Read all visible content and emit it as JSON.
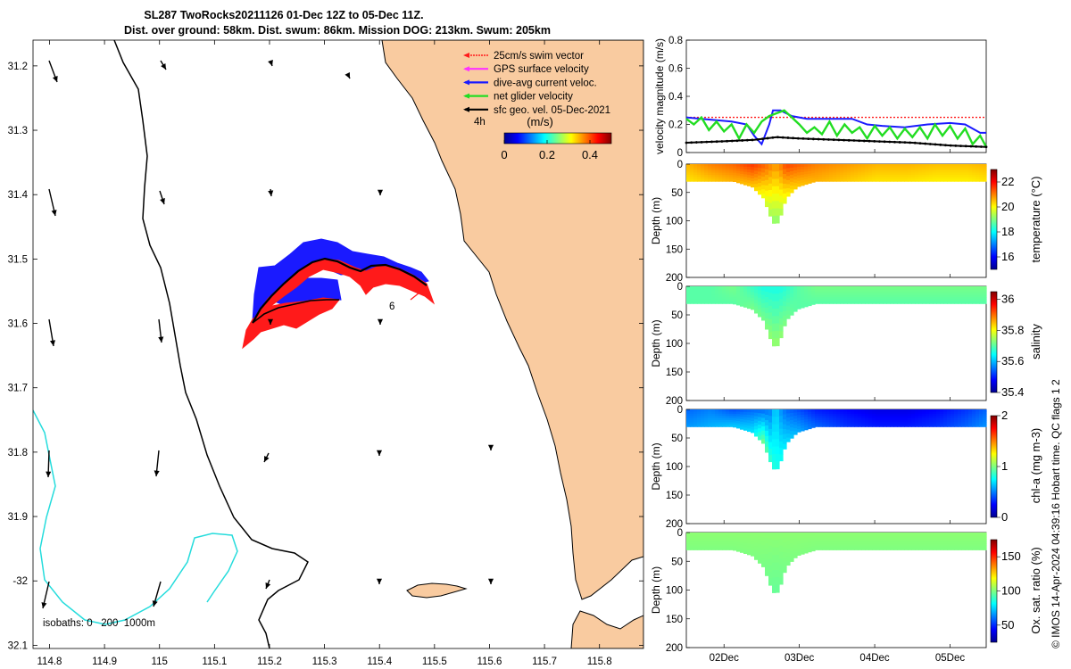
{
  "title": {
    "line1": "SL287 TwoRocks20211126 01-Dec 12Z to 05-Dec 11Z.",
    "line2": "Dist. over ground: 58km. Dist. swum: 86km. Mission DOG: 213km. Swum: 205km"
  },
  "colors": {
    "ocean": "#ffffff",
    "land": "#f9cba0",
    "coast": "#000000",
    "isobath_200": "#000000",
    "isobath_1000": "#25dcdc",
    "swim": "#ff1a1a",
    "gps": "#ff33ff",
    "dive_avg": "#1a1aff",
    "net": "#22dd22",
    "sfc_geo": "#000000"
  },
  "map": {
    "lon_ticks": [
      "114.8",
      "114.9",
      "115",
      "115.1",
      "115.2",
      "115.3",
      "115.4",
      "115.5",
      "115.6",
      "115.7",
      "115.8"
    ],
    "lat_ticks": [
      "31.2",
      "31.3",
      "31.4",
      "31.5",
      "31.6",
      "31.7",
      "31.8",
      "31.9",
      "-32",
      "32.1"
    ],
    "lon_range": [
      114.77,
      115.88
    ],
    "lat_range": [
      -32.105,
      -31.16
    ],
    "legend": [
      {
        "label": "25cm/s swim vector",
        "color": "#ff1a1a"
      },
      {
        "label": "GPS surface velocity",
        "color": "#ff33ff"
      },
      {
        "label": "dive-avg current veloc.",
        "color": "#1a1aff"
      },
      {
        "label": "net glider velocity",
        "color": "#22dd22"
      },
      {
        "label": "sfc geo. vel. 05-Dec-2021",
        "color": "#000000"
      }
    ],
    "time_label": "4h",
    "colorbar": {
      "label": "(m/s)",
      "ticks": [
        "0",
        "0.2",
        "0.4"
      ],
      "range": [
        0,
        0.5
      ]
    },
    "day_marker": "6",
    "isobath_label": "isobaths: 0   200  1000m"
  },
  "chart_data": [
    {
      "type": "line",
      "ylabel": "velocity magnitude (m/s)",
      "ylim": [
        0,
        0.8
      ],
      "yticks": [
        "0",
        "0.2",
        "0.4",
        "0.6",
        "0.8"
      ],
      "xlim_days": [
        1.5,
        5.48
      ],
      "series": [
        {
          "name": "",
          "color": "#ff1a1a",
          "style": "dotted",
          "x": [
            1.5,
            5.48
          ],
          "y": [
            0.25,
            0.25
          ]
        },
        {
          "name": "",
          "color": "#1a1aff",
          "x": [
            1.5,
            1.7,
            1.9,
            2.1,
            2.3,
            2.4,
            2.5,
            2.6,
            2.65,
            2.75,
            2.9,
            3.1,
            3.4,
            3.7,
            3.9,
            4.1,
            4.4,
            4.7,
            5.0,
            5.2,
            5.4,
            5.48
          ],
          "y": [
            0.25,
            0.24,
            0.23,
            0.22,
            0.2,
            0.12,
            0.06,
            0.2,
            0.3,
            0.3,
            0.26,
            0.24,
            0.24,
            0.24,
            0.2,
            0.19,
            0.18,
            0.2,
            0.21,
            0.2,
            0.14,
            0.14
          ]
        },
        {
          "name": "",
          "color": "#22dd22",
          "x": [
            1.5,
            1.6,
            1.7,
            1.8,
            1.9,
            2.0,
            2.1,
            2.2,
            2.3,
            2.4,
            2.5,
            2.6,
            2.7,
            2.8,
            2.9,
            3.0,
            3.1,
            3.2,
            3.3,
            3.4,
            3.5,
            3.6,
            3.7,
            3.8,
            3.9,
            4.0,
            4.1,
            4.2,
            4.3,
            4.4,
            4.5,
            4.6,
            4.7,
            4.8,
            4.9,
            5.0,
            5.1,
            5.2,
            5.3,
            5.4,
            5.48
          ],
          "y": [
            0.24,
            0.2,
            0.25,
            0.16,
            0.22,
            0.15,
            0.2,
            0.1,
            0.2,
            0.14,
            0.22,
            0.26,
            0.28,
            0.3,
            0.25,
            0.2,
            0.14,
            0.18,
            0.13,
            0.22,
            0.12,
            0.2,
            0.14,
            0.18,
            0.1,
            0.19,
            0.12,
            0.18,
            0.1,
            0.17,
            0.11,
            0.18,
            0.1,
            0.2,
            0.12,
            0.19,
            0.1,
            0.17,
            0.06,
            0.12,
            0.04
          ]
        },
        {
          "name": "",
          "color": "#000000",
          "x": [
            1.5,
            2.0,
            2.4,
            2.7,
            3.0,
            3.5,
            4.0,
            4.5,
            5.0,
            5.48
          ],
          "y": [
            0.07,
            0.08,
            0.09,
            0.11,
            0.1,
            0.09,
            0.08,
            0.07,
            0.05,
            0.04
          ]
        }
      ]
    },
    {
      "type": "heatmap",
      "variable": "temperature",
      "cbar_label": "temperature (°C)",
      "clim": [
        15,
        23
      ],
      "cticks": [
        "16",
        "18",
        "20",
        "22"
      ],
      "ylabel": "Depth (m)",
      "yticks": [
        "0",
        "50",
        "100",
        "150",
        "200"
      ],
      "ylim": [
        200,
        0
      ],
      "profile_days": [
        1.5,
        1.8,
        2.1,
        2.35,
        2.5,
        2.6,
        2.66,
        2.72,
        2.8,
        2.95,
        3.2,
        3.6,
        4.0,
        4.4,
        4.8,
        5.2,
        5.48
      ],
      "max_depth_m": [
        30,
        30,
        30,
        40,
        60,
        95,
        110,
        95,
        60,
        40,
        30,
        30,
        30,
        30,
        30,
        30,
        30
      ],
      "surface_value": [
        20.6,
        21.0,
        21.2,
        21.6,
        21.3,
        21.0,
        20.8,
        21.0,
        21.5,
        21.3,
        21.0,
        20.8,
        20.6,
        20.6,
        20.5,
        20.5,
        20.6
      ],
      "bottom_value": [
        20.2,
        20.4,
        20.6,
        20.4,
        19.8,
        19.2,
        19.0,
        19.2,
        19.9,
        20.4,
        20.6,
        20.4,
        20.2,
        20.2,
        20.1,
        20.1,
        20.2
      ]
    },
    {
      "type": "heatmap",
      "variable": "salinity",
      "cbar_label": "salinity",
      "clim": [
        35.4,
        36.05
      ],
      "cticks": [
        "35.4",
        "35.6",
        "35.8",
        "36"
      ],
      "ylabel": "Depth (m)",
      "yticks": [
        "0",
        "50",
        "100",
        "150",
        "200"
      ],
      "ylim": [
        200,
        0
      ],
      "profile_days": [
        1.5,
        1.8,
        2.1,
        2.35,
        2.5,
        2.6,
        2.66,
        2.72,
        2.8,
        2.95,
        3.2,
        3.6,
        4.0,
        4.4,
        4.8,
        5.2,
        5.48
      ],
      "max_depth_m": [
        30,
        30,
        30,
        40,
        60,
        95,
        110,
        95,
        60,
        40,
        30,
        30,
        30,
        30,
        30,
        30,
        30
      ],
      "surface_value": [
        35.7,
        35.7,
        35.72,
        35.68,
        35.66,
        35.66,
        35.66,
        35.66,
        35.67,
        35.7,
        35.72,
        35.72,
        35.72,
        35.72,
        35.72,
        35.72,
        35.72
      ],
      "bottom_value": [
        35.7,
        35.7,
        35.7,
        35.72,
        35.72,
        35.74,
        35.74,
        35.74,
        35.72,
        35.7,
        35.7,
        35.7,
        35.7,
        35.7,
        35.7,
        35.7,
        35.7
      ]
    },
    {
      "type": "heatmap",
      "variable": "chl-a",
      "cbar_label": "chl-a (mg m-3)",
      "clim": [
        0,
        2
      ],
      "cticks": [
        "0",
        "1",
        "2"
      ],
      "ylabel": "Depth (m)",
      "yticks": [
        "0",
        "50",
        "100",
        "150",
        "200"
      ],
      "ylim": [
        200,
        0
      ],
      "profile_days": [
        1.5,
        1.8,
        2.1,
        2.35,
        2.5,
        2.6,
        2.66,
        2.72,
        2.8,
        2.95,
        3.2,
        3.6,
        4.0,
        4.4,
        4.8,
        5.2,
        5.48
      ],
      "max_depth_m": [
        30,
        30,
        30,
        40,
        60,
        95,
        110,
        95,
        60,
        40,
        30,
        30,
        30,
        30,
        30,
        30,
        30
      ],
      "surface_value": [
        0.45,
        0.5,
        0.4,
        0.45,
        0.45,
        0.5,
        0.7,
        0.55,
        0.45,
        0.4,
        0.3,
        0.25,
        0.2,
        0.2,
        0.25,
        0.35,
        0.45
      ],
      "bottom_value": [
        0.55,
        0.6,
        0.65,
        0.7,
        1.0,
        0.85,
        0.8,
        0.8,
        0.7,
        0.6,
        0.45,
        0.35,
        0.3,
        0.3,
        0.35,
        0.45,
        0.55
      ]
    },
    {
      "type": "heatmap",
      "variable": "oxygen",
      "cbar_label": "Ox. sat. ratio (%)",
      "clim": [
        25,
        175
      ],
      "cticks": [
        "50",
        "100",
        "150"
      ],
      "ylabel": "Depth (m)",
      "yticks": [
        "0",
        "50",
        "100",
        "150",
        "200"
      ],
      "ylim": [
        200,
        0
      ],
      "profile_days": [
        1.5,
        1.8,
        2.1,
        2.35,
        2.5,
        2.6,
        2.66,
        2.72,
        2.8,
        2.95,
        3.2,
        3.6,
        4.0,
        4.4,
        4.8,
        5.2,
        5.48
      ],
      "max_depth_m": [
        30,
        30,
        30,
        40,
        60,
        95,
        110,
        95,
        60,
        40,
        30,
        30,
        30,
        30,
        30,
        30,
        30
      ],
      "surface_value": [
        102,
        102,
        102,
        102,
        102,
        102,
        102,
        102,
        102,
        102,
        102,
        102,
        102,
        102,
        102,
        102,
        102
      ],
      "bottom_value": [
        100,
        100,
        100,
        100,
        99,
        97,
        96,
        97,
        99,
        100,
        100,
        100,
        100,
        100,
        100,
        100,
        100
      ]
    }
  ],
  "time_axis": {
    "labels": [
      "02Dec",
      "03Dec",
      "04Dec",
      "05Dec"
    ],
    "label_days": [
      2,
      3,
      4,
      5
    ]
  },
  "footer": "© IMOS 14-Apr-2024 04:39:16 Hobart time. QC flags 1  2"
}
